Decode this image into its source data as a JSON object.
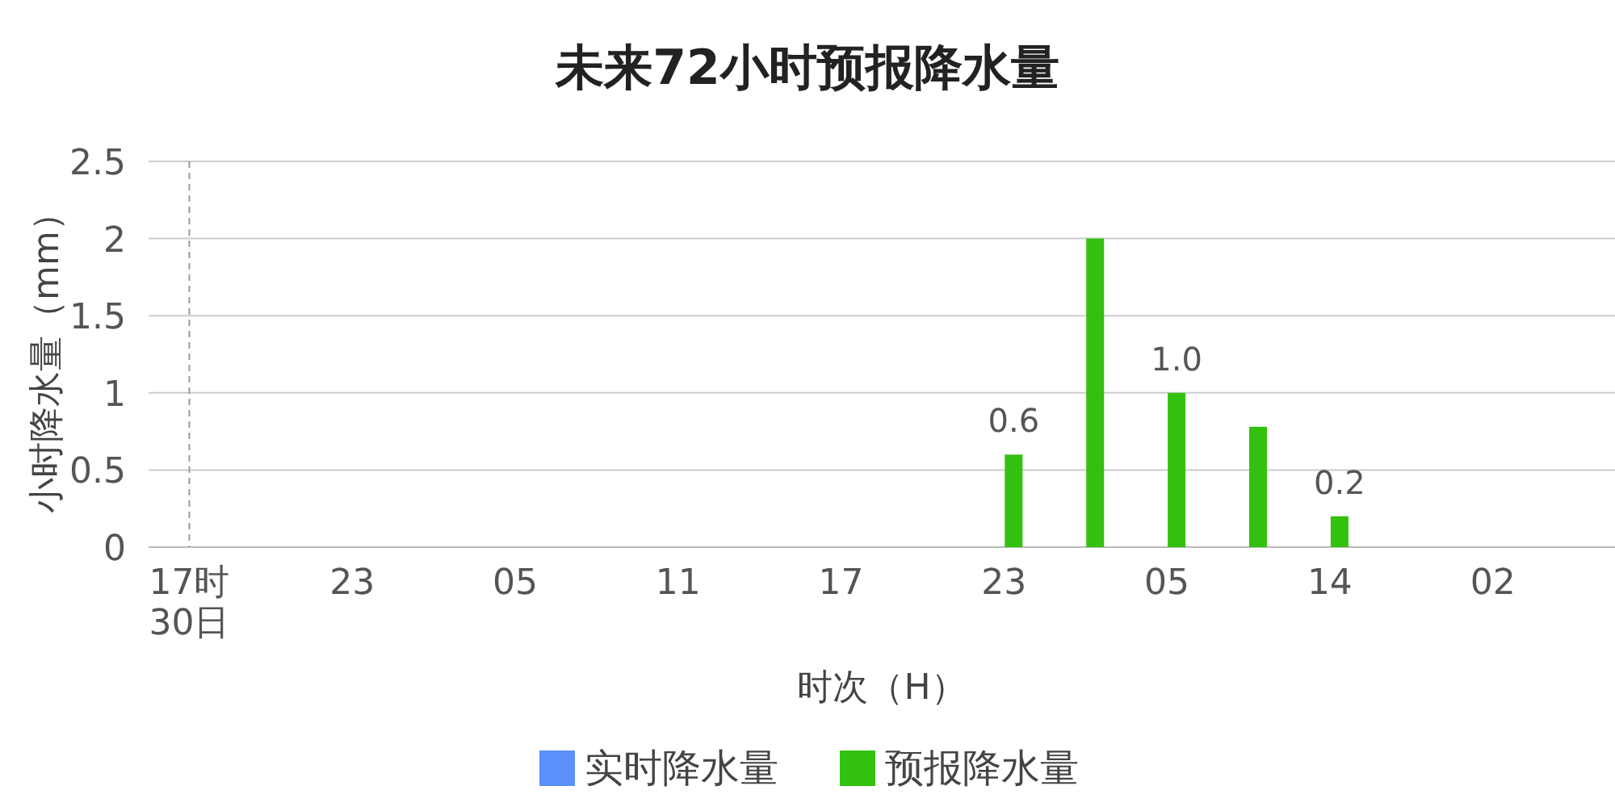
{
  "chart_data": {
    "type": "bar",
    "title": "未来72小时预报降水量",
    "xlabel": "时次（H）",
    "ylabel": "小时降水量（mm）",
    "categories": [
      "17时\n30日",
      null,
      "23",
      null,
      "05",
      null,
      "11",
      null,
      "17",
      null,
      "23",
      null,
      "05",
      null,
      "14",
      null,
      "02",
      null
    ],
    "series": [
      {
        "name": "实时降水量",
        "color": "#5b8ff9",
        "values": [
          0,
          0,
          0,
          0,
          0,
          0,
          0,
          0,
          0,
          0,
          null,
          null,
          null,
          null,
          null,
          null,
          null,
          null
        ]
      },
      {
        "name": "预报降水量",
        "color": "#33c10f",
        "values": [
          null,
          null,
          null,
          null,
          null,
          null,
          null,
          null,
          null,
          null,
          0.6,
          2,
          1.0,
          0.78,
          0.2,
          null,
          null,
          null
        ],
        "value_labels": [
          null,
          null,
          null,
          null,
          null,
          null,
          null,
          null,
          null,
          null,
          "0.6",
          null,
          "1.0",
          null,
          "0.2",
          null,
          null,
          null
        ]
      }
    ],
    "ylim": [
      0,
      2.5
    ],
    "yticks": [
      0,
      0.5,
      1,
      1.5,
      2,
      2.5
    ],
    "grid": "y",
    "legend": "bottom",
    "ref_lines": [
      {
        "axis": "x",
        "value": "17时\n30日",
        "label": null,
        "color": "#999999",
        "line_style": "dashed"
      }
    ]
  }
}
